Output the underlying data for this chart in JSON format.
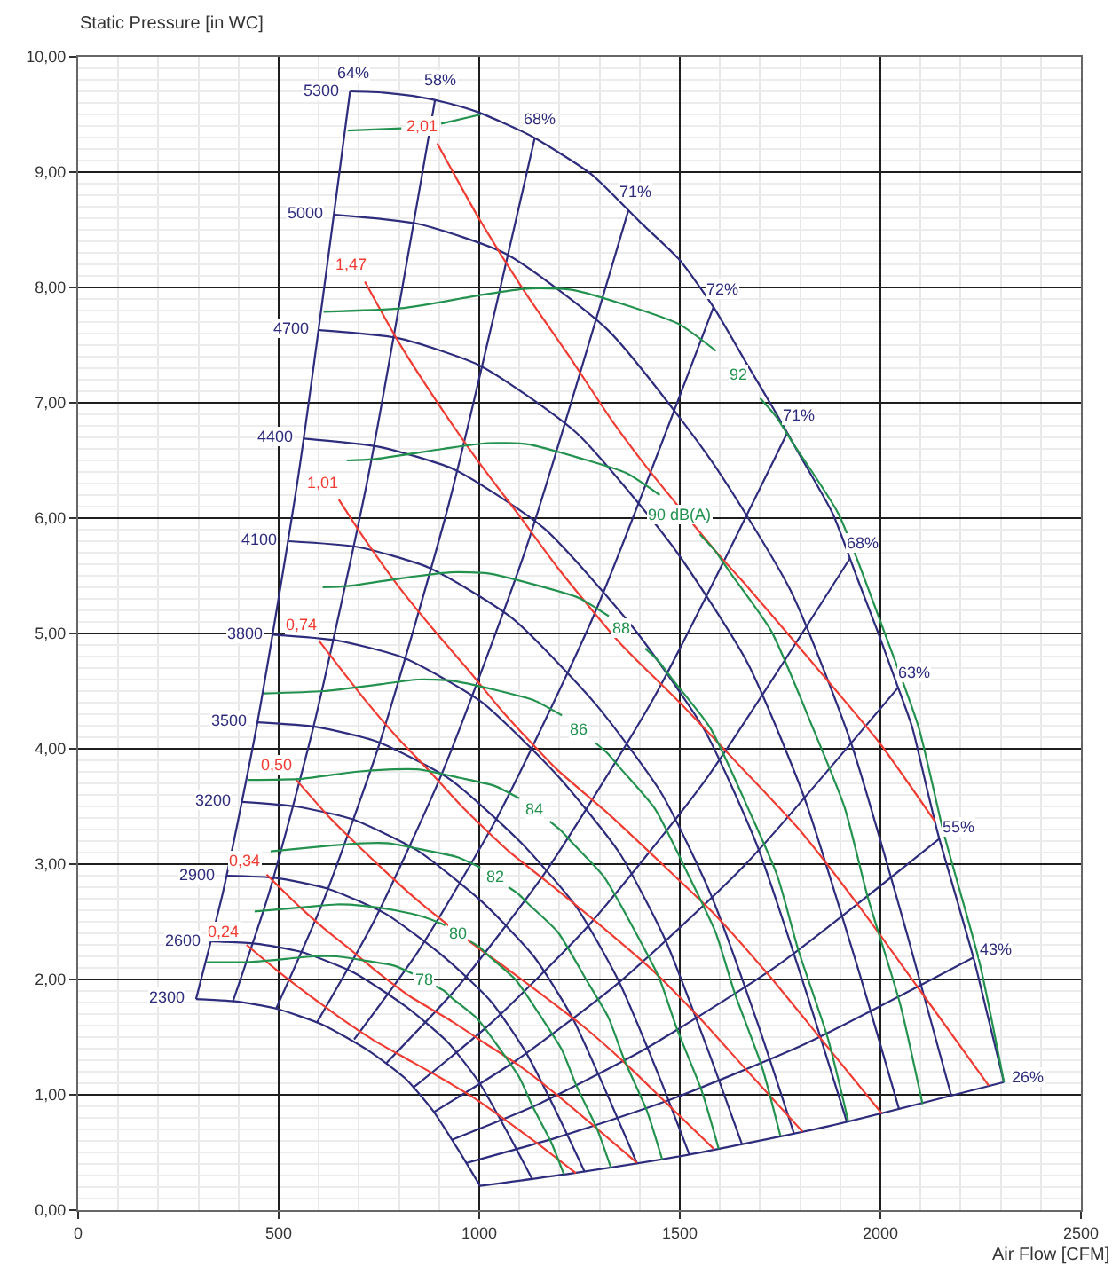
{
  "chart_data": {
    "type": "line",
    "xlabel": "Air Flow [CFM]",
    "ylabel": "Static Pressure [in WC]",
    "xlim": [
      0,
      2500
    ],
    "ylim": [
      0,
      10
    ],
    "grid": true,
    "xticks": [
      0,
      {
        "value": 100,
        "label": null
      },
      {
        "value": 200,
        "label": null
      },
      {
        "value": 300,
        "label": null
      },
      {
        "value": 400,
        "label": null
      },
      500,
      {
        "value": 600,
        "label": null
      },
      {
        "value": 700,
        "label": null
      },
      {
        "value": 800,
        "label": null
      },
      {
        "value": 900,
        "label": null
      },
      1000,
      {
        "value": 1100,
        "label": null
      },
      {
        "value": 1200,
        "label": null
      },
      {
        "value": 1300,
        "label": null
      },
      {
        "value": 1400,
        "label": null
      },
      1500,
      {
        "value": 1600,
        "label": null
      },
      {
        "value": 1700,
        "label": null
      },
      {
        "value": 1800,
        "label": null
      },
      {
        "value": 1900,
        "label": null
      },
      2000,
      {
        "value": 2100,
        "label": null
      },
      {
        "value": 2200,
        "label": null
      },
      {
        "value": 2300,
        "label": null
      },
      {
        "value": 2400,
        "label": null
      },
      2500
    ],
    "yticks": [
      {
        "value": 0,
        "label": "0,00"
      },
      {
        "value": 0.1,
        "label": null
      },
      {
        "value": 0.2,
        "label": null
      },
      {
        "value": 0.3,
        "label": null
      },
      {
        "value": 0.4,
        "label": null
      },
      {
        "value": 0.5,
        "label": null
      },
      {
        "value": 0.6,
        "label": null
      },
      {
        "value": 0.7,
        "label": null
      },
      {
        "value": 0.8,
        "label": null
      },
      {
        "value": 0.9,
        "label": null
      },
      {
        "value": 1,
        "label": "1,00"
      },
      {
        "value": 1.1,
        "label": null
      },
      {
        "value": 1.2,
        "label": null
      },
      {
        "value": 1.3,
        "label": null
      },
      {
        "value": 1.4,
        "label": null
      },
      {
        "value": 1.5,
        "label": null
      },
      {
        "value": 1.6,
        "label": null
      },
      {
        "value": 1.7,
        "label": null
      },
      {
        "value": 1.8,
        "label": null
      },
      {
        "value": 1.9,
        "label": null
      },
      {
        "value": 2,
        "label": "2,00"
      },
      {
        "value": 2.1,
        "label": null
      },
      {
        "value": 2.2,
        "label": null
      },
      {
        "value": 2.3,
        "label": null
      },
      {
        "value": 2.4,
        "label": null
      },
      {
        "value": 2.5,
        "label": null
      },
      {
        "value": 2.6,
        "label": null
      },
      {
        "value": 2.7,
        "label": null
      },
      {
        "value": 2.8,
        "label": null
      },
      {
        "value": 2.9,
        "label": null
      },
      {
        "value": 3,
        "label": "3,00"
      },
      {
        "value": 3.1,
        "label": null
      },
      {
        "value": 3.2,
        "label": null
      },
      {
        "value": 3.3,
        "label": null
      },
      {
        "value": 3.4,
        "label": null
      },
      {
        "value": 3.5,
        "label": null
      },
      {
        "value": 3.6,
        "label": null
      },
      {
        "value": 3.7,
        "label": null
      },
      {
        "value": 3.8,
        "label": null
      },
      {
        "value": 3.9,
        "label": null
      },
      {
        "value": 4,
        "label": "4,00"
      },
      {
        "value": 4.1,
        "label": null
      },
      {
        "value": 4.2,
        "label": null
      },
      {
        "value": 4.3,
        "label": null
      },
      {
        "value": 4.4,
        "label": null
      },
      {
        "value": 4.5,
        "label": null
      },
      {
        "value": 4.6,
        "label": null
      },
      {
        "value": 4.7,
        "label": null
      },
      {
        "value": 4.8,
        "label": null
      },
      {
        "value": 4.9,
        "label": null
      },
      {
        "value": 5,
        "label": "5,00"
      },
      {
        "value": 5.1,
        "label": null
      },
      {
        "value": 5.2,
        "label": null
      },
      {
        "value": 5.3,
        "label": null
      },
      {
        "value": 5.4,
        "label": null
      },
      {
        "value": 5.5,
        "label": null
      },
      {
        "value": 5.6,
        "label": null
      },
      {
        "value": 5.7,
        "label": null
      },
      {
        "value": 5.8,
        "label": null
      },
      {
        "value": 5.9,
        "label": null
      },
      {
        "value": 6,
        "label": "6,00"
      },
      {
        "value": 6.1,
        "label": null
      },
      {
        "value": 6.2,
        "label": null
      },
      {
        "value": 6.3,
        "label": null
      },
      {
        "value": 6.4,
        "label": null
      },
      {
        "value": 6.5,
        "label": null
      },
      {
        "value": 6.6,
        "label": null
      },
      {
        "value": 6.7,
        "label": null
      },
      {
        "value": 6.8,
        "label": null
      },
      {
        "value": 6.9,
        "label": null
      },
      {
        "value": 7,
        "label": "7,00"
      },
      {
        "value": 7.1,
        "label": null
      },
      {
        "value": 7.2,
        "label": null
      },
      {
        "value": 7.3,
        "label": null
      },
      {
        "value": 7.4,
        "label": null
      },
      {
        "value": 7.5,
        "label": null
      },
      {
        "value": 7.6,
        "label": null
      },
      {
        "value": 7.7,
        "label": null
      },
      {
        "value": 7.8,
        "label": null
      },
      {
        "value": 7.9,
        "label": null
      },
      {
        "value": 8,
        "label": "8,00"
      },
      {
        "value": 8.1,
        "label": null
      },
      {
        "value": 8.2,
        "label": null
      },
      {
        "value": 8.3,
        "label": null
      },
      {
        "value": 8.4,
        "label": null
      },
      {
        "value": 8.5,
        "label": null
      },
      {
        "value": 8.6,
        "label": null
      },
      {
        "value": 8.7,
        "label": null
      },
      {
        "value": 8.8,
        "label": null
      },
      {
        "value": 8.9,
        "label": null
      },
      {
        "value": 9,
        "label": "9,00"
      },
      {
        "value": 9.1,
        "label": null
      },
      {
        "value": 9.2,
        "label": null
      },
      {
        "value": 9.3,
        "label": null
      },
      {
        "value": 9.4,
        "label": null
      },
      {
        "value": 9.5,
        "label": null
      },
      {
        "value": 9.6,
        "label": null
      },
      {
        "value": 9.7,
        "label": null
      },
      {
        "value": 9.8,
        "label": null
      },
      {
        "value": 9.9,
        "label": null
      },
      {
        "value": 10,
        "label": "10,00"
      }
    ],
    "series": [
      {
        "name": "2300",
        "color": "#2e2c7c",
        "x": [
          294,
          391,
          491,
          608,
          725,
          816,
          885,
          950,
          1002
        ],
        "values": [
          1.83,
          1.81,
          1.75,
          1.61,
          1.38,
          1.14,
          0.86,
          0.51,
          0.21
        ]
      },
      {
        "name": "2600",
        "color": "#2e2c7c",
        "x": [
          333,
          442,
          555,
          687,
          819,
          923,
          1001,
          1074,
          1132
        ],
        "values": [
          2.33,
          2.31,
          2.24,
          2.06,
          1.76,
          1.45,
          1.1,
          0.65,
          0.27
        ]
      },
      {
        "name": "2900",
        "color": "#2e2c7c",
        "x": [
          371,
          493,
          619,
          766,
          914,
          1029,
          1116,
          1198,
          1263
        ],
        "values": [
          2.9,
          2.88,
          2.79,
          2.57,
          2.19,
          1.81,
          1.37,
          0.81,
          0.33
        ]
      },
      {
        "name": "3200",
        "color": "#2e2c7c",
        "x": [
          409,
          543,
          683,
          845,
          1008,
          1136,
          1232,
          1322,
          1394
        ],
        "values": [
          3.54,
          3.5,
          3.39,
          3.12,
          2.67,
          2.2,
          1.67,
          0.98,
          0.4
        ]
      },
      {
        "name": "3500",
        "color": "#2e2c7c",
        "x": [
          448,
          594,
          747,
          925,
          1103,
          1242,
          1347,
          1446,
          1524
        ],
        "values": [
          4.23,
          4.19,
          4.06,
          3.74,
          3.19,
          2.63,
          1.99,
          1.18,
          0.48
        ]
      },
      {
        "name": "3800",
        "color": "#2e2c7c",
        "x": [
          486,
          645,
          811,
          1004,
          1197,
          1349,
          1463,
          1570,
          1655
        ],
        "values": [
          4.99,
          4.94,
          4.79,
          4.41,
          3.76,
          3.1,
          2.35,
          1.39,
          0.57
        ]
      },
      {
        "name": "4100",
        "color": "#2e2c7c",
        "x": [
          525,
          696,
          875,
          1083,
          1292,
          1455,
          1578,
          1694,
          1785
        ],
        "values": [
          5.8,
          5.75,
          5.57,
          5.13,
          4.38,
          3.61,
          2.73,
          1.62,
          0.66
        ]
      },
      {
        "name": "4400",
        "color": "#2e2c7c",
        "x": [
          563,
          747,
          939,
          1162,
          1386,
          1562,
          1694,
          1818,
          1916
        ],
        "values": [
          6.69,
          6.62,
          6.42,
          5.91,
          5.04,
          4.16,
          3.15,
          1.86,
          0.77
        ]
      },
      {
        "name": "4700",
        "color": "#2e2c7c",
        "x": [
          601,
          798,
          1003,
          1242,
          1481,
          1668,
          1809,
          1942,
          2047
        ],
        "values": [
          7.63,
          7.56,
          7.32,
          6.74,
          5.76,
          4.75,
          3.59,
          2.12,
          0.87
        ]
      },
      {
        "name": "5000",
        "color": "#2e2c7c",
        "x": [
          640,
          849,
          1067,
          1321,
          1576,
          1775,
          1925,
          2066,
          2177
        ],
        "values": [
          8.63,
          8.55,
          8.29,
          7.63,
          6.51,
          5.38,
          4.07,
          2.4,
          0.99
        ]
      },
      {
        "name": "5300",
        "color": "#2e2c7c",
        "x": [
          678,
          760,
          835,
          920,
          997,
          1131,
          1280,
          1400,
          1499,
          1584,
          1670,
          1740,
          1800,
          1881,
          1940,
          1994,
          2040,
          2079,
          2115,
          2143,
          2190,
          2235,
          2270,
          2308
        ],
        "values": [
          9.7,
          9.69,
          9.66,
          9.6,
          9.52,
          9.31,
          8.98,
          8.57,
          8.24,
          7.83,
          7.32,
          6.91,
          6.54,
          6.04,
          5.5,
          5.01,
          4.57,
          4.19,
          3.67,
          3.27,
          2.7,
          2.15,
          1.65,
          1.11
        ]
      },
      {
        "name": "64%",
        "color": "#2e2c7c",
        "x": [
          678,
          550,
          446,
          362,
          294
        ],
        "values": [
          9.7,
          6.39,
          4.21,
          2.77,
          1.83
        ]
      },
      {
        "name": "58%",
        "color": "#2e2c7c",
        "x": [
          890,
          722,
          586,
          476,
          386
        ],
        "values": [
          9.63,
          6.34,
          4.18,
          2.75,
          1.81
        ]
      },
      {
        "name": "68%",
        "color": "#2e2c7c",
        "x": [
          1138,
          924,
          750,
          609,
          494
        ],
        "values": [
          9.29,
          6.12,
          4.03,
          2.66,
          1.75
        ]
      },
      {
        "name": "71%",
        "color": "#2e2c7c",
        "x": [
          1372,
          1114,
          904,
          734,
          596
        ],
        "values": [
          8.67,
          5.71,
          3.76,
          2.48,
          1.63
        ]
      },
      {
        "name": "72%",
        "color": "#2e2c7c",
        "x": [
          1584,
          1286,
          1044,
          847,
          688
        ],
        "values": [
          7.83,
          5.16,
          3.4,
          2.24,
          1.48
        ]
      },
      {
        "name": "71%",
        "color": "#2e2c7c",
        "x": [
          1768,
          1435,
          1165,
          945,
          767
        ],
        "values": [
          6.74,
          4.44,
          2.93,
          1.93,
          1.27
        ]
      },
      {
        "name": "68%",
        "color": "#2e2c7c",
        "x": [
          1924,
          1562,
          1268,
          1029,
          835
        ],
        "values": [
          5.65,
          3.72,
          2.45,
          1.62,
          1.06
        ]
      },
      {
        "name": "63%",
        "color": "#2e2c7c",
        "x": [
          2044,
          1659,
          1347,
          1093,
          887
        ],
        "values": [
          4.53,
          2.98,
          1.97,
          1.3,
          0.85
        ]
      },
      {
        "name": "55%",
        "color": "#2e2c7c",
        "x": [
          2147,
          1743,
          1415,
          1148,
          932
        ],
        "values": [
          3.22,
          2.12,
          1.4,
          0.92,
          0.61
        ]
      },
      {
        "name": "43%",
        "color": "#2e2c7c",
        "x": [
          2232,
          1812,
          1470,
          1194,
          969
        ],
        "values": [
          2.19,
          1.44,
          0.95,
          0.63,
          0.41
        ]
      },
      {
        "name": "26%",
        "color": "#2e2c7c",
        "x": [
          2308,
          1873,
          1521,
          1234,
          1002
        ],
        "values": [
          1.11,
          0.73,
          0.48,
          0.32,
          0.21
        ]
      },
      {
        "name": "0,24",
        "color": "#f03c32",
        "x": [
          420,
          492,
          547,
          601,
          656,
          738,
          820,
          902,
          984,
          1066,
          1148,
          1241
        ],
        "values": [
          2.3,
          2.09,
          1.94,
          1.8,
          1.66,
          1.47,
          1.31,
          1.15,
          0.98,
          0.78,
          0.57,
          0.32
        ]
      },
      {
        "name": "0,34",
        "color": "#f03c32",
        "x": [
          470,
          552,
          614,
          675,
          737,
          829,
          921,
          1013,
          1105,
          1197,
          1289,
          1393
        ],
        "values": [
          2.91,
          2.63,
          2.44,
          2.27,
          2.09,
          1.85,
          1.66,
          1.45,
          1.24,
          0.99,
          0.72,
          0.41
        ]
      },
      {
        "name": "0,50",
        "color": "#f03c32",
        "x": [
          544,
          628,
          698,
          768,
          838,
          890,
          995,
          1047,
          1152,
          1257,
          1362,
          1466,
          1585
        ],
        "values": [
          3.73,
          3.4,
          3.16,
          2.93,
          2.71,
          2.56,
          2.28,
          2.15,
          1.88,
          1.6,
          1.28,
          0.93,
          0.53
        ]
      },
      {
        "name": "0,74",
        "color": "#f03c32",
        "x": [
          600,
          716,
          795,
          875,
          954,
          1074,
          1193,
          1312,
          1432,
          1551,
          1670,
          1806
        ],
        "values": [
          4.94,
          4.42,
          4.1,
          3.81,
          3.51,
          3.11,
          2.78,
          2.44,
          2.08,
          1.66,
          1.2,
          0.68
        ]
      },
      {
        "name": "1,01",
        "color": "#f03c32",
        "x": [
          650,
          706,
          794,
          882,
          971,
          1059,
          1191,
          1324,
          1456,
          1588,
          1721,
          1853,
          2003
        ],
        "values": [
          6.16,
          5.86,
          5.43,
          5.05,
          4.69,
          4.32,
          3.83,
          3.43,
          3.0,
          2.56,
          2.04,
          1.48,
          0.84
        ]
      },
      {
        "name": "1,47",
        "color": "#f03c32",
        "x": [
          715,
          800,
          900,
          1000,
          1100,
          1200,
          1350,
          1500,
          1650,
          1800,
          1950,
          2100,
          2270
        ],
        "values": [
          8.05,
          7.52,
          6.98,
          6.48,
          6.02,
          5.55,
          4.92,
          4.4,
          3.85,
          3.29,
          2.62,
          1.9,
          1.08
        ]
      },
      {
        "name": "2,01",
        "color": "#f03c32",
        "x": [
          895,
          999,
          1110,
          1221,
          1332,
          1420,
          1600,
          1665,
          1832,
          1998,
          2136
        ],
        "values": [
          9.25,
          8.6,
          7.98,
          7.42,
          6.84,
          6.43,
          5.67,
          5.42,
          4.74,
          4.05,
          3.37
        ]
      },
      {
        "color": "#22924e",
        "x": [
          672,
          806,
          852,
          905,
          1004
        ],
        "values": [
          9.36,
          9.38,
          null,
          9.42,
          9.5
        ]
      },
      {
        "name": "92",
        "color": "#22924e",
        "x": [
          612,
          806,
          997,
          1117,
          1230,
          1372,
          1499,
          1590,
          1645,
          1700,
          1740,
          1782,
          1895,
          2010,
          2095,
          2158,
          2247,
          2308
        ],
        "values": [
          7.79,
          7.82,
          7.93,
          7.99,
          7.98,
          7.84,
          7.68,
          7.45,
          null,
          7.04,
          6.88,
          6.65,
          6.04,
          5.01,
          4.19,
          3.27,
          2.15,
          1.11
        ]
      },
      {
        "name": "90 dB(A)",
        "color": "#22924e",
        "x": [
          670,
          735,
          909,
          1019,
          1122,
          1251,
          1367,
          1450,
          1500,
          1550,
          1587,
          1625,
          1728,
          1833,
          1911,
          1968,
          2049,
          2105
        ],
        "values": [
          6.5,
          6.51,
          6.6,
          6.65,
          6.64,
          6.52,
          6.39,
          6.2,
          null,
          5.86,
          5.72,
          5.53,
          5.02,
          4.17,
          3.49,
          2.72,
          1.79,
          0.92
        ]
      },
      {
        "name": "88",
        "color": "#22924e",
        "x": [
          610,
          670,
          829,
          929,
          1023,
          1141,
          1247,
          1323,
          1355,
          1414,
          1447,
          1482,
          1576,
          1672,
          1743,
          1795,
          1869,
          1920
        ],
        "values": [
          5.4,
          5.41,
          5.49,
          5.53,
          5.52,
          5.42,
          5.31,
          5.15,
          null,
          4.87,
          4.76,
          4.6,
          4.18,
          3.47,
          2.9,
          2.26,
          1.49,
          0.77
        ]
      },
      {
        "name": "86",
        "color": "#22924e",
        "x": [
          464,
          611,
          756,
          847,
          933,
          1041,
          1137,
          1206,
          1248,
          1290,
          1320,
          1352,
          1438,
          1525,
          1589,
          1637,
          1705,
          1751
        ],
        "values": [
          4.48,
          4.5,
          4.56,
          4.6,
          4.59,
          4.51,
          4.42,
          4.29,
          null,
          4.05,
          3.96,
          3.83,
          3.48,
          2.88,
          2.41,
          1.88,
          1.24,
          0.64
        ]
      },
      {
        "name": "84",
        "color": "#22924e",
        "x": [
          423,
          558,
          690,
          773,
          851,
          949,
          1037,
          1100,
          1138,
          1176,
          1204,
          1233,
          1311,
          1391,
          1449,
          1493,
          1555,
          1597
        ],
        "values": [
          3.73,
          3.74,
          3.8,
          3.82,
          3.82,
          3.75,
          3.68,
          3.57,
          null,
          3.37,
          3.29,
          3.18,
          2.89,
          2.4,
          2.01,
          1.57,
          1.03,
          0.53
        ]
      },
      {
        "name": "82",
        "color": "#22924e",
        "x": [
          480,
          629,
          705,
          776,
          866,
          946,
          1003,
          1038,
          1073,
          1098,
          1124,
          1196,
          1268,
          1322,
          1362,
          1418,
          1456
        ],
        "values": [
          3.11,
          3.16,
          3.18,
          3.18,
          3.12,
          3.06,
          2.97,
          null,
          2.8,
          2.74,
          2.65,
          2.41,
          1.99,
          1.67,
          1.3,
          0.86,
          0.44
        ]
      },
      {
        "name": "80",
        "color": "#22924e",
        "x": [
          440,
          574,
          643,
          708,
          790,
          863,
          915,
          947,
          978,
          1001,
          1025,
          1090,
          1157,
          1206,
          1242,
          1293,
          1328
        ],
        "values": [
          2.59,
          2.63,
          2.65,
          2.64,
          2.6,
          2.54,
          2.47,
          null,
          2.33,
          2.28,
          2.2,
          2.0,
          1.66,
          1.39,
          1.08,
          0.71,
          0.37
        ]
      },
      {
        "name": "78",
        "color": "#22924e",
        "x": [
          321,
          423,
          523,
          586,
          646,
          720,
          787,
          834,
          863,
          892,
          913,
          935,
          995,
          1055,
          1100,
          1133,
          1179,
          1211
        ],
        "values": [
          2.15,
          2.15,
          2.18,
          2.2,
          2.2,
          2.16,
          2.12,
          2.05,
          null,
          1.94,
          1.9,
          1.83,
          1.66,
          1.38,
          1.15,
          0.9,
          0.59,
          0.31
        ]
      }
    ]
  }
}
